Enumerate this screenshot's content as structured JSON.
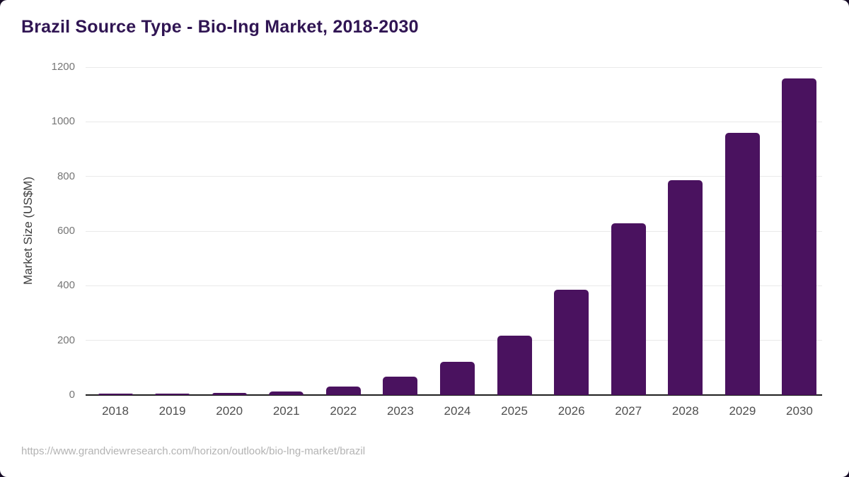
{
  "page": {
    "title": "Brazil Source Type - Bio-lng Market, 2018-2030",
    "source_url": "https://www.grandviewresearch.com/horizon/outlook/bio-lng-market/brazil"
  },
  "colors": {
    "bar": "#4a125f",
    "title": "#301553",
    "axis_line": "#1f1f1f",
    "gridline": "#e9e9e9",
    "y_tick_label": "#767676",
    "x_tick_label": "#4f4f4f",
    "y_axis_label": "#3d3d3d",
    "footer": "#b3b3b3",
    "card_background": "#ffffff",
    "frame_background": "#160b26"
  },
  "chart_data": {
    "type": "bar",
    "title": "Brazil Source Type - Bio-lng Market, 2018-2030",
    "categories": [
      "2018",
      "2019",
      "2020",
      "2021",
      "2022",
      "2023",
      "2024",
      "2025",
      "2026",
      "2027",
      "2028",
      "2029",
      "2030"
    ],
    "values": [
      5,
      6,
      7,
      13,
      32,
      68,
      121,
      218,
      385,
      628,
      786,
      959,
      1158
    ],
    "xlabel": "",
    "ylabel": "Market Size (US$M)",
    "ylim": [
      0,
      1200
    ],
    "yticks": [
      0,
      200,
      400,
      600,
      800,
      1000,
      1200
    ],
    "grid": true,
    "legend_position": "none",
    "footer": "https://www.grandviewresearch.com/horizon/outlook/bio-lng-market/brazil"
  }
}
